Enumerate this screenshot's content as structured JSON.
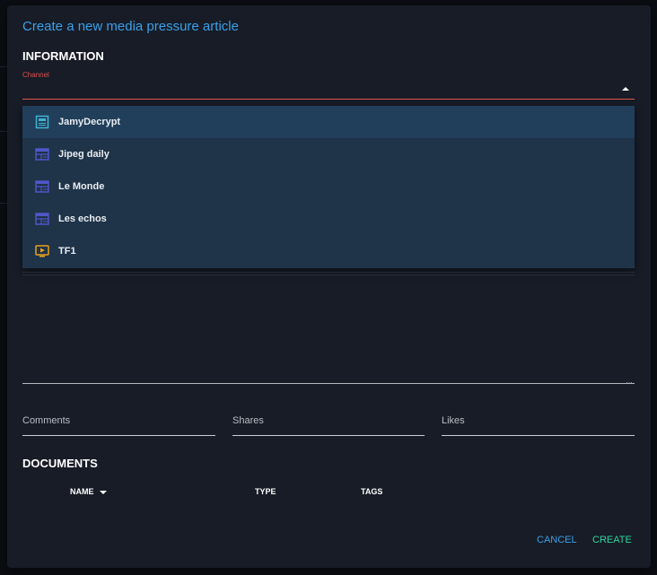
{
  "dialog": {
    "title": "Create a new media pressure article",
    "information_heading": "INFORMATION",
    "channel": {
      "label": "Channel",
      "value": "",
      "options": [
        {
          "label": "JamyDecrypt",
          "icon": "journal-icon",
          "color": "#3fb3d1"
        },
        {
          "label": "Jipeg daily",
          "icon": "newspaper-icon",
          "color": "#4e56c8"
        },
        {
          "label": "Le Monde",
          "icon": "newspaper-icon",
          "color": "#4e56c8"
        },
        {
          "label": "Les echos",
          "icon": "newspaper-icon",
          "color": "#4e56c8"
        },
        {
          "label": "TF1",
          "icon": "tv-icon",
          "color": "#e8a21f"
        }
      ]
    },
    "metrics": {
      "comments_label": "Comments",
      "shares_label": "Shares",
      "likes_label": "Likes"
    },
    "documents": {
      "heading": "DOCUMENTS",
      "columns": [
        "NAME",
        "TYPE",
        "TAGS"
      ]
    },
    "actions": {
      "cancel": "CANCEL",
      "create": "CREATE"
    }
  },
  "colors": {
    "accent": "#3aa0e8",
    "create": "#2fd6a0",
    "error": "#e05a4f"
  }
}
